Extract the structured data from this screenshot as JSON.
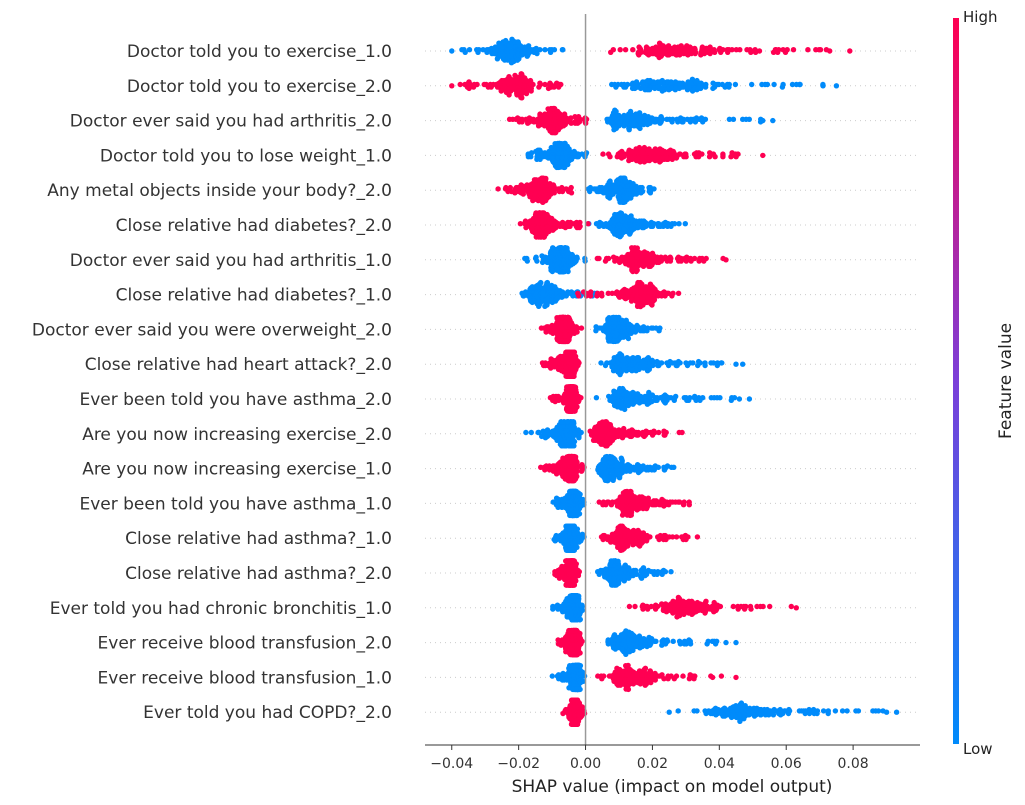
{
  "chart_data": {
    "type": "scatter",
    "subtype": "shap-beeswarm-summary",
    "xlabel": "SHAP value (impact on model output)",
    "xlim": [
      -0.048,
      0.1
    ],
    "xticks": [
      -0.04,
      -0.02,
      0.0,
      0.02,
      0.04,
      0.06,
      0.08
    ],
    "xtick_labels": [
      "−0.04",
      "−0.02",
      "0.00",
      "0.02",
      "0.04",
      "0.06",
      "0.08"
    ],
    "grid": false,
    "colorbar": {
      "label": "Feature value",
      "high_label": "High",
      "low_label": "Low",
      "low_color": "#008bfb",
      "high_color": "#ff0052"
    },
    "features": [
      {
        "name": "Doctor told you to exercise_1.0",
        "low": {
          "min": -0.04,
          "max": -0.002,
          "peak": -0.023
        },
        "high": {
          "min": 0.001,
          "max": 0.079,
          "peak": 0.022
        },
        "outliers": [
          [
            -0.04,
            "low"
          ],
          [
            0.052,
            "high"
          ],
          [
            0.073,
            "high"
          ],
          [
            0.079,
            "high"
          ]
        ]
      },
      {
        "name": "Doctor told you to exercise_2.0",
        "low": {
          "min": 0.002,
          "max": 0.075,
          "peak": 0.02
        },
        "high": {
          "min": -0.04,
          "max": -0.003,
          "peak": -0.02
        },
        "outliers": [
          [
            -0.04,
            "high"
          ],
          [
            0.071,
            "low"
          ],
          [
            0.075,
            "low"
          ]
        ]
      },
      {
        "name": "Doctor ever said you had arthritis_2.0",
        "low": {
          "min": 0.003,
          "max": 0.056,
          "peak": 0.008
        },
        "high": {
          "min": -0.025,
          "max": 0.003,
          "peak": -0.009
        },
        "outliers": [
          [
            0.056,
            "low"
          ],
          [
            0.053,
            "low"
          ]
        ]
      },
      {
        "name": "Doctor told you to lose weight_1.0",
        "low": {
          "min": -0.019,
          "max": 0.002,
          "peak": -0.007
        },
        "high": {
          "min": 0.003,
          "max": 0.053,
          "peak": 0.015
        },
        "outliers": [
          [
            0.053,
            "high"
          ]
        ]
      },
      {
        "name": "Any metal objects inside your body?_2.0",
        "low": {
          "min": -0.002,
          "max": 0.023,
          "peak": 0.011
        },
        "high": {
          "min": -0.027,
          "max": 0.0,
          "peak": -0.013
        },
        "outliers": []
      },
      {
        "name": "Close relative had diabetes?_2.0",
        "low": {
          "min": 0.0,
          "max": 0.031,
          "peak": 0.01
        },
        "high": {
          "min": -0.021,
          "max": 0.004,
          "peak": -0.014
        },
        "outliers": []
      },
      {
        "name": "Doctor ever said you had arthritis_1.0",
        "low": {
          "min": -0.019,
          "max": 0.001,
          "peak": -0.007
        },
        "high": {
          "min": 0.002,
          "max": 0.042,
          "peak": 0.015
        },
        "outliers": [
          [
            0.042,
            "high"
          ]
        ]
      },
      {
        "name": "Close relative had diabetes?_1.0",
        "low": {
          "min": -0.022,
          "max": 0.006,
          "peak": -0.014
        },
        "high": {
          "min": -0.005,
          "max": 0.03,
          "peak": 0.018
        },
        "outliers": []
      },
      {
        "name": "Doctor ever said you were overweight_2.0",
        "low": {
          "min": 0.002,
          "max": 0.025,
          "peak": 0.008
        },
        "high": {
          "min": -0.014,
          "max": 0.0,
          "peak": -0.006
        },
        "outliers": []
      },
      {
        "name": "Close relative had heart attack?_2.0",
        "low": {
          "min": 0.003,
          "max": 0.047,
          "peak": 0.01
        },
        "high": {
          "min": -0.014,
          "max": 0.0,
          "peak": -0.004
        },
        "outliers": [
          [
            0.047,
            "low"
          ],
          [
            0.045,
            "low"
          ]
        ]
      },
      {
        "name": "Ever been told you have asthma_2.0",
        "low": {
          "min": 0.003,
          "max": 0.049,
          "peak": 0.01
        },
        "high": {
          "min": -0.011,
          "max": 0.0,
          "peak": -0.004
        },
        "outliers": [
          [
            0.049,
            "low"
          ],
          [
            0.046,
            "low"
          ]
        ]
      },
      {
        "name": "Are you now increasing exercise_2.0",
        "low": {
          "min": -0.019,
          "max": 0.001,
          "peak": -0.005
        },
        "high": {
          "min": 0.001,
          "max": 0.03,
          "peak": 0.003
        },
        "outliers": []
      },
      {
        "name": "Are you now increasing exercise_1.0",
        "low": {
          "min": 0.002,
          "max": 0.027,
          "peak": 0.006
        },
        "high": {
          "min": -0.014,
          "max": 0.0,
          "peak": -0.004
        },
        "outliers": []
      },
      {
        "name": "Ever been told you have asthma_1.0",
        "low": {
          "min": -0.01,
          "max": 0.0,
          "peak": -0.003
        },
        "high": {
          "min": 0.003,
          "max": 0.036,
          "peak": 0.012
        },
        "outliers": []
      },
      {
        "name": "Close relative had asthma?_1.0",
        "low": {
          "min": -0.01,
          "max": 0.0,
          "peak": -0.004
        },
        "high": {
          "min": 0.003,
          "max": 0.034,
          "peak": 0.01
        },
        "outliers": []
      },
      {
        "name": "Close relative had asthma?_2.0",
        "low": {
          "min": 0.003,
          "max": 0.028,
          "peak": 0.008
        },
        "high": {
          "min": -0.011,
          "max": 0.0,
          "peak": -0.004
        },
        "outliers": []
      },
      {
        "name": "Ever told you had chronic bronchitis_1.0",
        "low": {
          "min": -0.01,
          "max": 0.0,
          "peak": -0.003
        },
        "high": {
          "min": 0.007,
          "max": 0.063,
          "peak": 0.03
        },
        "outliers": [
          [
            0.063,
            "high"
          ]
        ]
      },
      {
        "name": "Ever receive blood transfusion_2.0",
        "low": {
          "min": 0.003,
          "max": 0.045,
          "peak": 0.01
        },
        "high": {
          "min": -0.009,
          "max": 0.0,
          "peak": -0.003
        },
        "outliers": [
          [
            0.045,
            "low"
          ],
          [
            0.042,
            "low"
          ]
        ]
      },
      {
        "name": "Ever receive blood transfusion_1.0",
        "low": {
          "min": -0.01,
          "max": 0.0,
          "peak": -0.002
        },
        "high": {
          "min": 0.003,
          "max": 0.045,
          "peak": 0.01
        },
        "outliers": [
          [
            0.045,
            "high"
          ],
          [
            0.038,
            "high"
          ]
        ]
      },
      {
        "name": "Ever told you had COPD?_2.0",
        "low": {
          "min": 0.025,
          "max": 0.093,
          "peak": 0.045
        },
        "high": {
          "min": -0.007,
          "max": 0.0,
          "peak": -0.003
        },
        "outliers": [
          [
            0.09,
            "low"
          ],
          [
            0.093,
            "low"
          ],
          [
            0.025,
            "low"
          ]
        ]
      }
    ]
  }
}
